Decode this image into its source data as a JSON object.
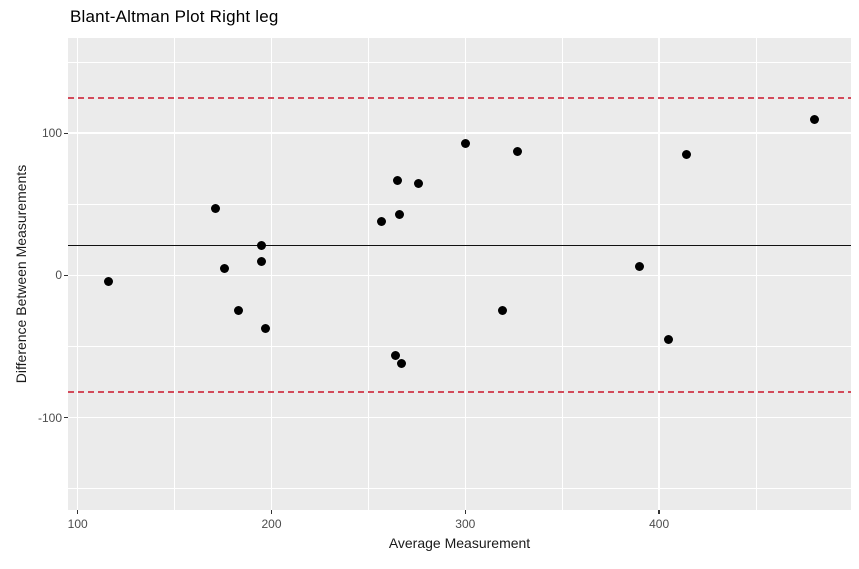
{
  "chart_data": {
    "type": "scatter",
    "title": "Blant-Altman Plot Right leg",
    "xlabel": "Average Measurement",
    "ylabel": "Difference Between Measurements",
    "xlim": [
      95,
      499
    ],
    "ylim": [
      -165,
      167
    ],
    "x_ticks": [
      100,
      200,
      300,
      400
    ],
    "y_ticks": [
      -100,
      0,
      100
    ],
    "x_minor_ticks": [
      150,
      250,
      350,
      450
    ],
    "y_minor_ticks": [
      -150,
      -50,
      50,
      150
    ],
    "grid": true,
    "legend": false,
    "points": [
      [
        116,
        -4
      ],
      [
        171,
        47
      ],
      [
        176,
        5
      ],
      [
        183,
        -25
      ],
      [
        195,
        21
      ],
      [
        195,
        10
      ],
      [
        197,
        -37
      ],
      [
        257,
        38
      ],
      [
        264,
        -56
      ],
      [
        265,
        67
      ],
      [
        266,
        43
      ],
      [
        267,
        -62
      ],
      [
        276,
        65
      ],
      [
        300,
        93
      ],
      [
        319,
        -25
      ],
      [
        327,
        87
      ],
      [
        390,
        6
      ],
      [
        405,
        -45
      ],
      [
        414,
        85
      ],
      [
        480,
        110
      ]
    ],
    "reference_lines": [
      {
        "name": "mean-line",
        "y": 21,
        "style": "solid",
        "color": "#111111"
      },
      {
        "name": "upper-loa-line",
        "y": 125,
        "style": "dashed",
        "color": "#d34a5a"
      },
      {
        "name": "lower-loa-line",
        "y": -82,
        "style": "dashed",
        "color": "#d34a5a"
      }
    ],
    "colors": {
      "panel_bg": "#ebebeb",
      "grid": "#ffffff",
      "point": "#000000",
      "tick_label": "#4d4d4d",
      "axis_title": "#1a1a1a",
      "tick_mark": "#333333"
    }
  }
}
